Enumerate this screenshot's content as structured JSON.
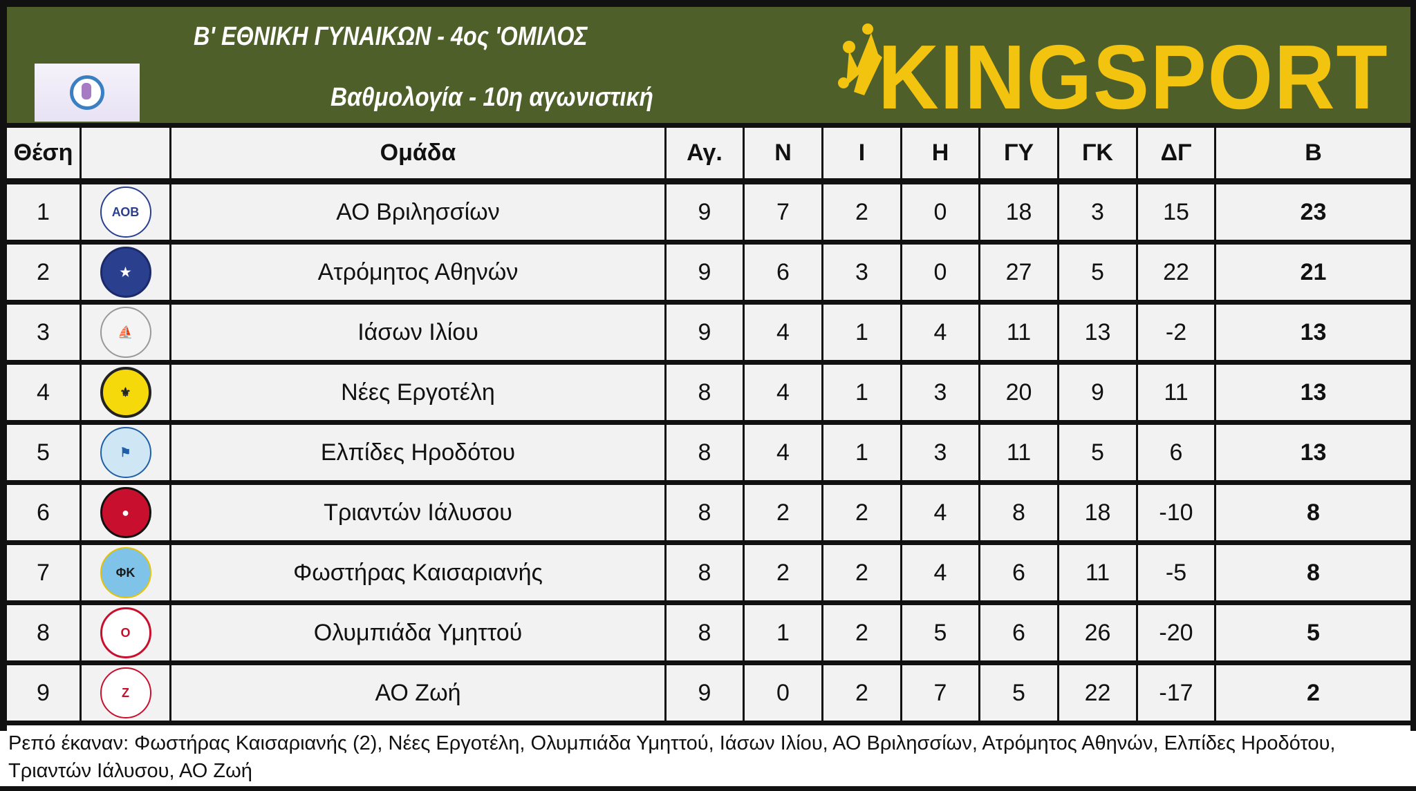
{
  "header": {
    "title": "Β' ΕΘΝΙΚΗ ΓΥΝΑΙΚΩΝ - 4ος 'ΟΜΙΛΟΣ",
    "subtitle": "Βαθμολογία - 10η αγωνιστική",
    "league_logo_icon": "womens-football-league-logo",
    "brand": "KINGSPORT",
    "brand_color": "#f2c40f",
    "header_bg": "#4f5f2a"
  },
  "table": {
    "columns": [
      "Θέση",
      "",
      "Ομάδα",
      "Αγ.",
      "Ν",
      "Ι",
      "Η",
      "ΓΥ",
      "ΓΚ",
      "ΔΓ",
      "Β"
    ],
    "rows": [
      {
        "pos": "1",
        "crest": "ao-vrilissia-crest",
        "team": "ΑΟ Βριλησσίων",
        "p": "9",
        "w": "7",
        "d": "2",
        "l": "0",
        "gf": "18",
        "ga": "3",
        "gd": "15",
        "pts": "23"
      },
      {
        "pos": "2",
        "crest": "atromitos-athinon-crest",
        "team": "Ατρόμητος Αθηνών",
        "p": "9",
        "w": "6",
        "d": "3",
        "l": "0",
        "gf": "27",
        "ga": "5",
        "gd": "22",
        "pts": "21"
      },
      {
        "pos": "3",
        "crest": "iason-iliou-crest",
        "team": "Ιάσων Ιλίου",
        "p": "9",
        "w": "4",
        "d": "1",
        "l": "4",
        "gf": "11",
        "ga": "13",
        "gd": "-2",
        "pts": "13"
      },
      {
        "pos": "4",
        "crest": "nees-ergotelis-crest",
        "team": "Νέες Εργοτέλη",
        "p": "8",
        "w": "4",
        "d": "1",
        "l": "3",
        "gf": "20",
        "ga": "9",
        "gd": "11",
        "pts": "13"
      },
      {
        "pos": "5",
        "crest": "elpides-irodotou-crest",
        "team": "Ελπίδες Ηροδότου",
        "p": "8",
        "w": "4",
        "d": "1",
        "l": "3",
        "gf": "11",
        "ga": "5",
        "gd": "6",
        "pts": "13"
      },
      {
        "pos": "6",
        "crest": "triandon-ialysou-crest",
        "team": "Τριαντών Ιάλυσου",
        "p": "8",
        "w": "2",
        "d": "2",
        "l": "4",
        "gf": "8",
        "ga": "18",
        "gd": "-10",
        "pts": "8"
      },
      {
        "pos": "7",
        "crest": "fostiras-kaisarianis-crest",
        "team": "Φωστήρας Καισαριανής",
        "p": "8",
        "w": "2",
        "d": "2",
        "l": "4",
        "gf": "6",
        "ga": "11",
        "gd": "-5",
        "pts": "8"
      },
      {
        "pos": "8",
        "crest": "olympiada-ymittou-crest",
        "team": "Ολυμπιάδα Υμηττού",
        "p": "8",
        "w": "1",
        "d": "2",
        "l": "5",
        "gf": "6",
        "ga": "26",
        "gd": "-20",
        "pts": "5"
      },
      {
        "pos": "9",
        "crest": "ao-zoi-crest",
        "team": "ΑΟ Ζωή",
        "p": "9",
        "w": "0",
        "d": "2",
        "l": "7",
        "gf": "5",
        "ga": "22",
        "gd": "-17",
        "pts": "2"
      }
    ]
  },
  "footer": {
    "text": "Ρεπό έκαναν:  Φωστήρας Καισαριανής (2),  Νέες Εργοτέλη,  Ολυμπιάδα Υμηττού,  Ιάσων Ιλίου,  ΑΟ Βριλησσίων,  Ατρόμητος Αθηνών,  Ελπίδες Ηροδότου,  Τριαντών Ιάλυσου,  ΑΟ Ζωή"
  }
}
